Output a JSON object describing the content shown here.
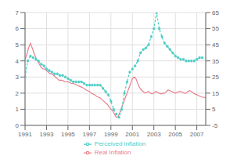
{
  "chart_data": {
    "type": "line",
    "xlim": [
      1991.0,
      2007.83
    ],
    "xticks": [
      1991,
      1993,
      1995,
      1997,
      1999,
      2001,
      2003,
      2005,
      2007
    ],
    "ylim": [
      0,
      7
    ],
    "yticks": [
      0,
      1,
      2,
      3,
      4,
      5,
      6,
      7
    ],
    "y2lim": [
      -5,
      65
    ],
    "y2ticks": [
      -5,
      5,
      15,
      25,
      35,
      45,
      55,
      65
    ],
    "grid": true,
    "legend": "bottom",
    "series": [
      {
        "name": "Real Inflation",
        "color": "#e8808e",
        "axis": "y",
        "line_style": "solid",
        "marker": "none",
        "x": [
          1991.0,
          1991.17,
          1991.33,
          1991.5,
          1991.67,
          1991.83,
          1992.0,
          1992.17,
          1992.33,
          1992.5,
          1992.67,
          1992.83,
          1993.0,
          1993.17,
          1993.33,
          1993.5,
          1993.67,
          1993.83,
          1994.0,
          1994.17,
          1994.33,
          1994.5,
          1994.67,
          1994.83,
          1995.0,
          1995.17,
          1995.33,
          1995.5,
          1995.67,
          1995.83,
          1996.0,
          1996.17,
          1996.33,
          1996.5,
          1996.67,
          1996.83,
          1997.0,
          1997.17,
          1997.33,
          1997.5,
          1997.67,
          1997.83,
          1998.0,
          1998.17,
          1998.33,
          1998.5,
          1998.67,
          1998.83,
          1999.0,
          1999.17,
          1999.33,
          1999.5,
          1999.67,
          1999.83,
          2000.0,
          2000.17,
          2000.33,
          2000.5,
          2000.67,
          2000.83,
          2001.0,
          2001.17,
          2001.33,
          2001.5,
          2001.67,
          2001.83,
          2002.0,
          2002.17,
          2002.33,
          2002.5,
          2002.67,
          2002.83,
          2003.0,
          2003.17,
          2003.33,
          2003.5,
          2003.67,
          2003.83,
          2004.0,
          2004.17,
          2004.33,
          2004.5,
          2004.67,
          2004.83,
          2005.0,
          2005.17,
          2005.33,
          2005.5,
          2005.67,
          2005.83,
          2006.0,
          2006.17,
          2006.33,
          2006.5,
          2006.67,
          2006.83,
          2007.0,
          2007.17,
          2007.33,
          2007.5,
          2007.67,
          2007.83
        ],
        "values": [
          4.1,
          4.4,
          4.8,
          5.1,
          4.8,
          4.5,
          4.2,
          4.0,
          3.8,
          3.6,
          3.5,
          3.5,
          3.4,
          3.3,
          3.2,
          3.2,
          3.1,
          3.0,
          2.9,
          2.8,
          2.8,
          2.8,
          2.7,
          2.7,
          2.7,
          2.65,
          2.6,
          2.6,
          2.55,
          2.5,
          2.45,
          2.4,
          2.35,
          2.3,
          2.2,
          2.15,
          2.1,
          2.0,
          1.95,
          1.9,
          1.8,
          1.75,
          1.7,
          1.6,
          1.5,
          1.4,
          1.3,
          1.15,
          1.0,
          0.9,
          0.7,
          0.5,
          0.55,
          0.8,
          1.1,
          1.4,
          1.7,
          2.0,
          2.3,
          2.6,
          2.9,
          3.0,
          2.9,
          2.6,
          2.35,
          2.2,
          2.1,
          2.0,
          2.05,
          2.1,
          2.0,
          1.95,
          2.0,
          2.1,
          2.05,
          2.0,
          1.95,
          2.0,
          2.0,
          2.1,
          2.2,
          2.15,
          2.1,
          2.05,
          2.0,
          2.05,
          2.1,
          2.1,
          2.05,
          2.0,
          2.0,
          2.1,
          2.15,
          2.1,
          2.0,
          1.95,
          1.9,
          1.85,
          1.8,
          1.75,
          1.75,
          1.7
        ]
      },
      {
        "name": "Perceived inflation",
        "color": "#4ecdc4",
        "axis": "y2",
        "line_style": "dashed",
        "marker": "circle",
        "x": [
          1991.0,
          1991.25,
          1991.5,
          1991.75,
          1992.0,
          1992.25,
          1992.5,
          1992.75,
          1993.0,
          1993.25,
          1993.5,
          1993.75,
          1994.0,
          1994.25,
          1994.5,
          1994.75,
          1995.0,
          1995.25,
          1995.5,
          1995.75,
          1996.0,
          1996.25,
          1996.5,
          1996.75,
          1997.0,
          1997.25,
          1997.5,
          1997.75,
          1998.0,
          1998.25,
          1998.5,
          1998.75,
          1999.0,
          1999.25,
          1999.5,
          1999.75,
          2000.0,
          2000.25,
          2000.5,
          2000.75,
          2001.0,
          2001.25,
          2001.5,
          2001.75,
          2002.0,
          2002.25,
          2002.5,
          2002.75,
          2003.0,
          2003.25,
          2003.5,
          2003.75,
          2004.0,
          2004.25,
          2004.5,
          2004.75,
          2005.0,
          2005.25,
          2005.5,
          2005.75,
          2006.0,
          2006.25,
          2006.5,
          2006.75,
          2007.0,
          2007.25,
          2007.5
        ],
        "values": [
          25,
          35,
          38,
          37,
          36,
          35,
          33,
          32,
          30,
          29,
          28,
          27,
          27,
          26,
          26,
          25,
          24,
          23,
          22,
          22,
          22,
          22,
          21,
          20,
          20,
          20,
          20,
          20,
          20,
          18,
          16,
          14,
          10,
          5,
          2,
          0,
          5,
          15,
          22,
          28,
          30,
          32,
          35,
          40,
          42,
          43,
          45,
          50,
          55,
          65,
          55,
          50,
          46,
          44,
          42,
          40,
          38,
          37,
          36,
          36,
          35,
          35,
          35,
          35,
          36,
          37,
          37
        ]
      }
    ]
  }
}
